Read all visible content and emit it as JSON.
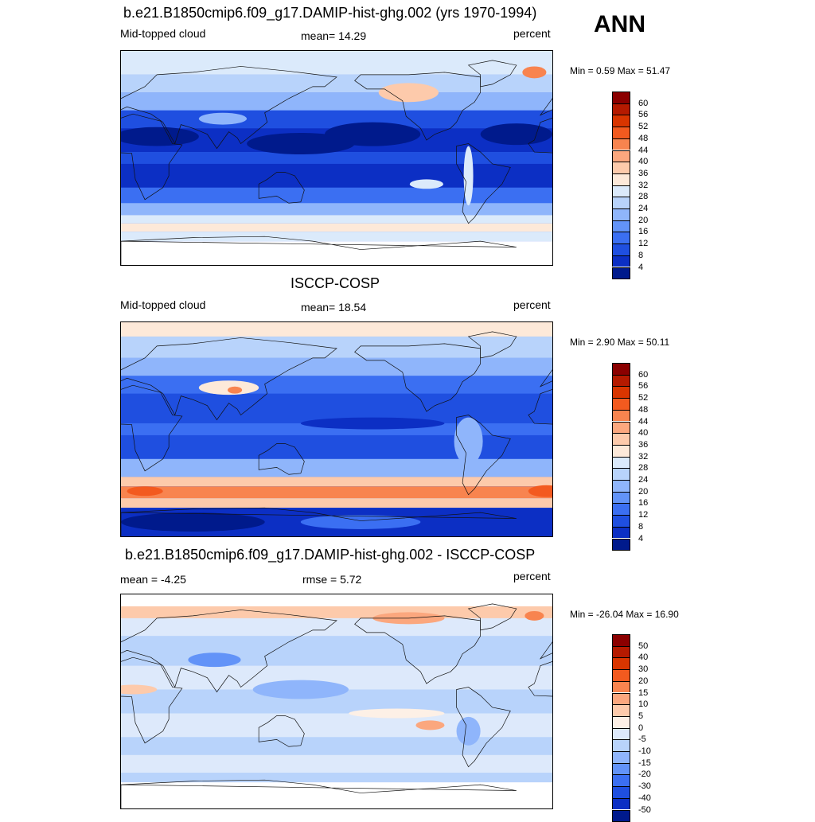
{
  "season": "ANN",
  "panels": [
    {
      "title": "b.e21.B1850cmip6.f09_g17.DAMIP-hist-ghg.002 (yrs 1970-1994)",
      "left_label": "Mid-topped cloud",
      "center_label": "mean=  14.29",
      "right_label": "percent",
      "minmax": "Min =   0.59 Max =  51.47",
      "colorbar": {
        "labels": [
          "60",
          "56",
          "52",
          "48",
          "44",
          "40",
          "36",
          "32",
          "28",
          "24",
          "20",
          "16",
          "12",
          "8",
          "4"
        ],
        "colors": [
          "#8b0000",
          "#b51a00",
          "#d93500",
          "#f35a1f",
          "#f8844f",
          "#fba77e",
          "#fdcaab",
          "#fde9d9",
          "#dbeafb",
          "#b8d3fb",
          "#8fb5fb",
          "#6293f8",
          "#3b6ff2",
          "#1f4fe0",
          "#0c2fc4",
          "#001a8c"
        ]
      },
      "field": "model"
    },
    {
      "title": "ISCCP-COSP",
      "left_label": "Mid-topped cloud",
      "center_label": "mean=  18.54",
      "right_label": "percent",
      "minmax": "Min =   2.90 Max =  50.11",
      "colorbar": {
        "labels": [
          "60",
          "56",
          "52",
          "48",
          "44",
          "40",
          "36",
          "32",
          "28",
          "24",
          "20",
          "16",
          "12",
          "8",
          "4"
        ],
        "colors": [
          "#8b0000",
          "#b51a00",
          "#d93500",
          "#f35a1f",
          "#f8844f",
          "#fba77e",
          "#fdcaab",
          "#fde9d9",
          "#dbeafb",
          "#b8d3fb",
          "#8fb5fb",
          "#6293f8",
          "#3b6ff2",
          "#1f4fe0",
          "#0c2fc4",
          "#001a8c"
        ]
      },
      "field": "obs"
    },
    {
      "title": "b.e21.B1850cmip6.f09_g17.DAMIP-hist-ghg.002 - ISCCP-COSP",
      "left_label": "mean =  -4.25",
      "center_label": "rmse =    5.72",
      "right_label": "percent",
      "minmax": "Min = -26.04 Max =  16.90",
      "colorbar": {
        "labels": [
          "50",
          "40",
          "30",
          "20",
          "15",
          "10",
          "5",
          "0",
          "-5",
          "-10",
          "-15",
          "-20",
          "-30",
          "-40",
          "-50"
        ],
        "colors": [
          "#8b0000",
          "#b51a00",
          "#d93500",
          "#f35a1f",
          "#f8844f",
          "#fba77e",
          "#fdcaab",
          "#fdf0e6",
          "#dde9fb",
          "#b8d3fb",
          "#8fb5fb",
          "#6293f8",
          "#3b6ff2",
          "#1f4fe0",
          "#0c2fc4",
          "#001a8c"
        ]
      },
      "field": "diff"
    }
  ]
}
